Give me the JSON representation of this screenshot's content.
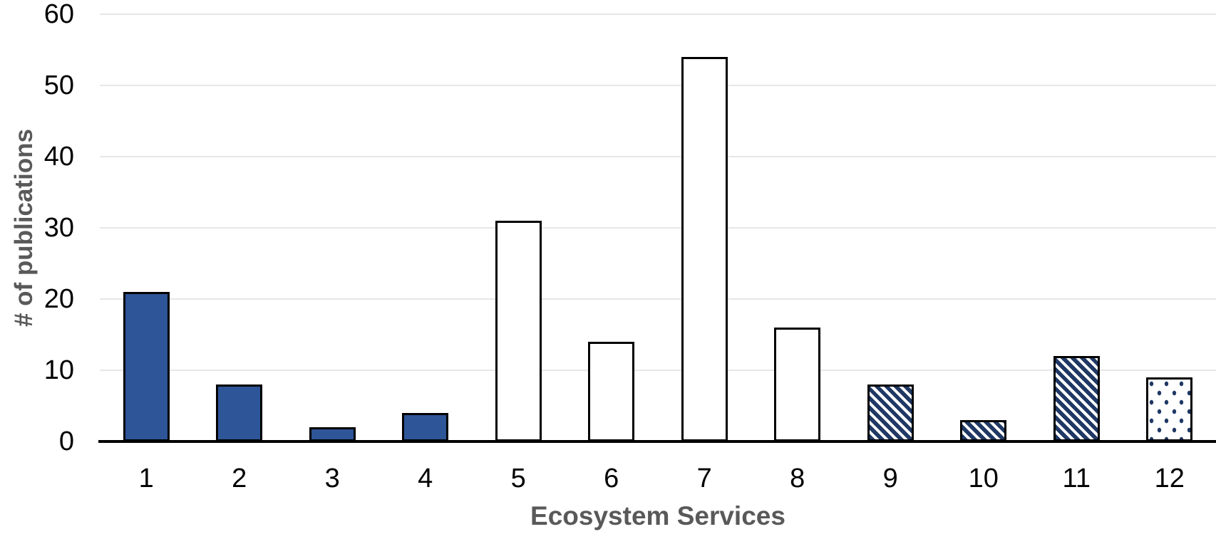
{
  "chart_data": {
    "type": "bar",
    "title": "",
    "xlabel": "Ecosystem Services",
    "ylabel": "# of publications",
    "categories": [
      "1",
      "2",
      "3",
      "4",
      "5",
      "6",
      "7",
      "8",
      "9",
      "10",
      "11",
      "12"
    ],
    "values": [
      21,
      8,
      2,
      4,
      31,
      14,
      54,
      16,
      8,
      3,
      12,
      9
    ],
    "bar_styles": [
      "solid",
      "solid",
      "solid",
      "solid",
      "outline",
      "outline",
      "outline",
      "outline",
      "diagonal-hatch",
      "diagonal-hatch",
      "diagonal-hatch",
      "dotted"
    ],
    "yticks": [
      0,
      10,
      20,
      30,
      40,
      50,
      60
    ],
    "ylim": [
      0,
      60
    ],
    "grid": "horizontal-gridlines",
    "legend": "none",
    "colors": {
      "solid_fill": "#2E5597",
      "hatch_color": "#1F3864",
      "bar_outline": "#000000",
      "axis_tick_text": "#000000",
      "axis_title_text": "#595959",
      "gridline": "#E7E7E7",
      "background": "#FFFFFF"
    }
  }
}
